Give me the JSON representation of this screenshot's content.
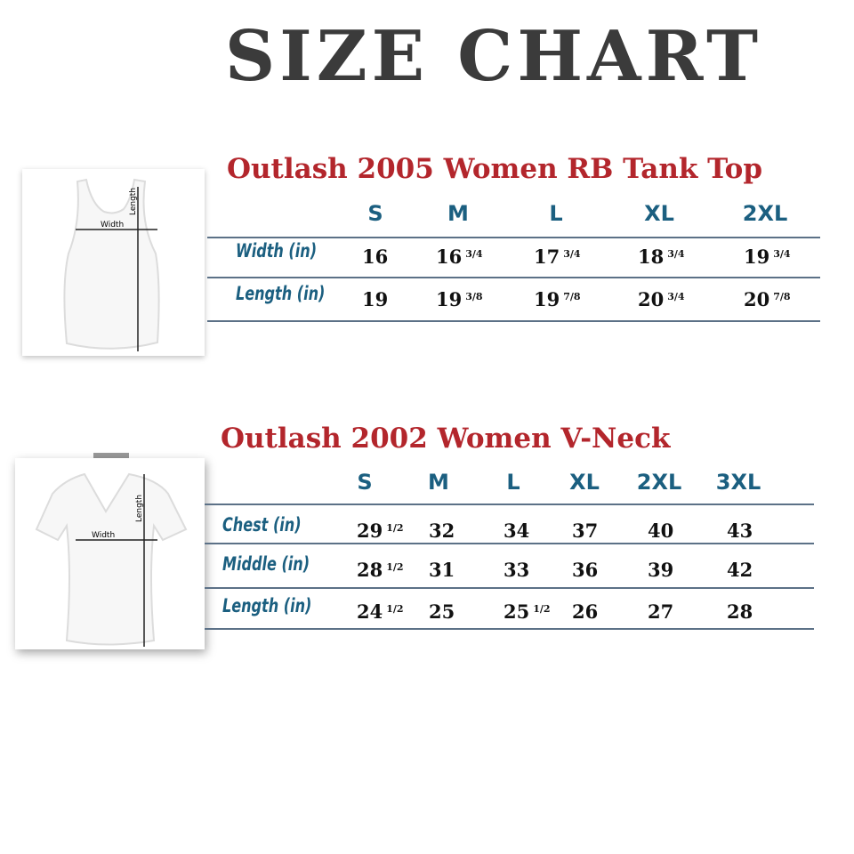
{
  "title": "SIZE CHART",
  "tables": [
    {
      "heading": "Outlash 2005 Women RB Tank Top",
      "image_labels": {
        "width": "Width",
        "length": "Length"
      },
      "sizes": [
        "S",
        "M",
        "L",
        "XL",
        "2XL"
      ],
      "rows": [
        {
          "label": "Width (in)",
          "values": [
            {
              "whole": "16",
              "frac": ""
            },
            {
              "whole": "16",
              "frac": "3/4"
            },
            {
              "whole": "17",
              "frac": "3/4"
            },
            {
              "whole": "18",
              "frac": "3/4"
            },
            {
              "whole": "19",
              "frac": "3/4"
            }
          ]
        },
        {
          "label": "Length (in)",
          "values": [
            {
              "whole": "19",
              "frac": ""
            },
            {
              "whole": "19",
              "frac": "3/8"
            },
            {
              "whole": "19",
              "frac": "7/8"
            },
            {
              "whole": "20",
              "frac": "3/4"
            },
            {
              "whole": "20",
              "frac": "7/8"
            }
          ]
        }
      ]
    },
    {
      "heading": "Outlash 2002 Women V-Neck",
      "image_labels": {
        "width": "Width",
        "length": "Length"
      },
      "sizes": [
        "S",
        "M",
        "L",
        "XL",
        "2XL",
        "3XL"
      ],
      "rows": [
        {
          "label": "Chest (in)",
          "values": [
            {
              "whole": "29",
              "frac": "1/2"
            },
            {
              "whole": "32",
              "frac": ""
            },
            {
              "whole": "34",
              "frac": ""
            },
            {
              "whole": "37",
              "frac": ""
            },
            {
              "whole": "40",
              "frac": ""
            },
            {
              "whole": "43",
              "frac": ""
            }
          ]
        },
        {
          "label": "Middle (in)",
          "values": [
            {
              "whole": "28",
              "frac": "1/2"
            },
            {
              "whole": "31",
              "frac": ""
            },
            {
              "whole": "33",
              "frac": ""
            },
            {
              "whole": "36",
              "frac": ""
            },
            {
              "whole": "39",
              "frac": ""
            },
            {
              "whole": "42",
              "frac": ""
            }
          ]
        },
        {
          "label": "Length (in)",
          "values": [
            {
              "whole": "24",
              "frac": "1/2"
            },
            {
              "whole": "25",
              "frac": ""
            },
            {
              "whole": "25",
              "frac": "1/2"
            },
            {
              "whole": "26",
              "frac": ""
            },
            {
              "whole": "27",
              "frac": ""
            },
            {
              "whole": "28",
              "frac": ""
            }
          ]
        }
      ]
    }
  ],
  "colors": {
    "title": "#3b3b3b",
    "heading": "#b3262c",
    "size_label": "#1b5f80",
    "rule": "#5c7187"
  }
}
